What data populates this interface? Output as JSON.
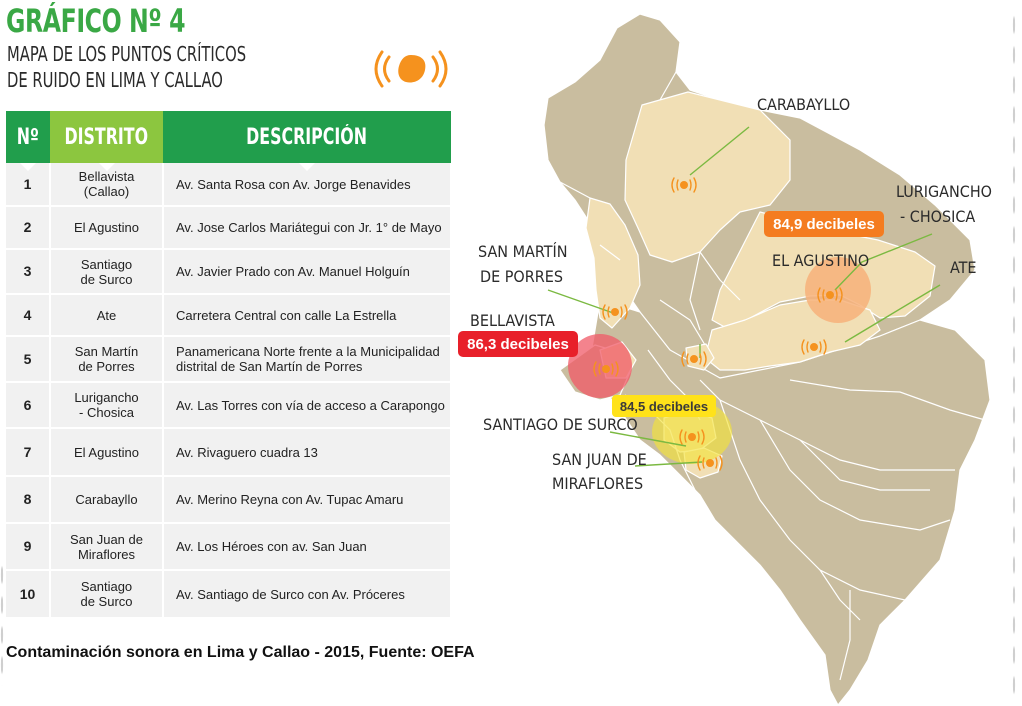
{
  "header": {
    "title": "GRÁFICO Nº 4",
    "subtitle_line1": "MAPA DE LOS PUNTOS CRÍTICOS",
    "subtitle_line2": "DE RUIDO EN LIMA Y CALLAO"
  },
  "colors": {
    "green_dark": "#219e4c",
    "green_light": "#8cc63f",
    "title_green": "#3aa845",
    "map_base": "#c9bd9f",
    "map_highlight": "#f1dfb5",
    "noise_icon": "#f5921e",
    "badge_red": "#e8202a",
    "badge_orange": "#f47c20",
    "badge_yellow": "#ffe21a"
  },
  "table": {
    "headers": [
      "Nº",
      "DISTRITO",
      "DESCRIPCIÓN"
    ],
    "rows": [
      {
        "n": "1",
        "district": "Bellavista\n(Callao)",
        "description": "Av. Santa Rosa con Av. Jorge Benavides"
      },
      {
        "n": "2",
        "district": "El Agustino",
        "description": "Av. Jose Carlos Mariátegui con Jr. 1° de Mayo"
      },
      {
        "n": "3",
        "district": "Santiago\nde Surco",
        "description": "Av. Javier Prado con Av. Manuel Holguín"
      },
      {
        "n": "4",
        "district": "Ate",
        "description": "Carretera Central con calle La Estrella"
      },
      {
        "n": "5",
        "district": "San Martín\nde Porres",
        "description": "Panamericana Norte frente a la Municipalidad\ndistrital de San Martín de Porres"
      },
      {
        "n": "6",
        "district": "Lurigancho\n- Chosica",
        "description": "Av. Las Torres con vía de acceso a Carapongo"
      },
      {
        "n": "7",
        "district": "El Agustino",
        "description": "Av. Rivaguero cuadra 13"
      },
      {
        "n": "8",
        "district": "Carabayllo",
        "description": "Av. Merino Reyna con Av. Tupac Amaru"
      },
      {
        "n": "9",
        "district": "San Juan de\nMiraflores",
        "description": "Av. Los Héroes con av. San Juan"
      },
      {
        "n": "10",
        "district": "Santiago\nde Surco",
        "description": "Av. Santiago de Surco con Av. Próceres"
      }
    ]
  },
  "caption": "Contaminación sonora en Lima y Callao - 2015, Fuente: OEFA",
  "map": {
    "labels": {
      "carabayllo": "CARABAYLLO",
      "lurigancho_1": "LURIGANCHO",
      "lurigancho_2": "- CHOSICA",
      "el_agustino": "EL AGUSTINO",
      "ate": "ATE",
      "smp_1": "SAN MARTÍN",
      "smp_2": "DE PORRES",
      "bellavista": "BELLAVISTA",
      "surco": "SANTIAGO DE SURCO",
      "sjm_1": "SAN JUAN DE",
      "sjm_2": "MIRAFLORES"
    },
    "badges": {
      "bellavista": "86,3 decibeles",
      "el_agustino": "84,9 decibeles",
      "surco": "84,5 decibeles"
    },
    "icons": [
      "noise-icon",
      "sound-waves-icon"
    ]
  }
}
